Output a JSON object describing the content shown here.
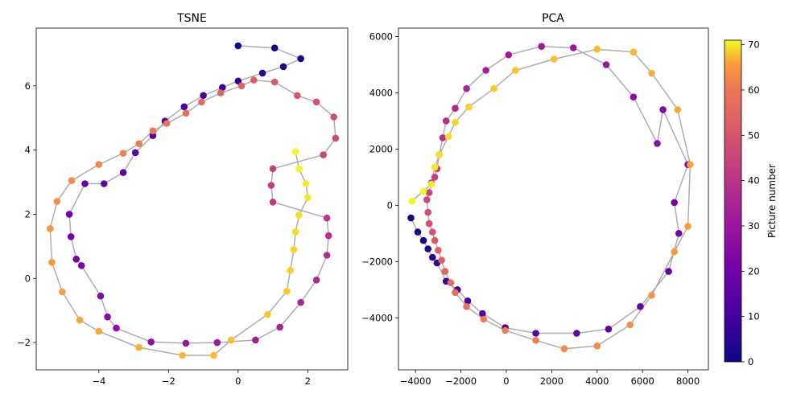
{
  "chart_data": [
    {
      "type": "scatter",
      "title": "TSNE",
      "connected_by_line": true,
      "line_color": "#999999",
      "colormap": "plasma",
      "xlim": [
        -5.8,
        3.15
      ],
      "ylim": [
        -2.85,
        7.8
      ],
      "x_ticks": [
        -4,
        -2,
        0,
        2
      ],
      "y_ticks": [
        -2,
        0,
        2,
        4,
        6
      ],
      "x": [
        0.0,
        1.05,
        1.8,
        1.3,
        0.7,
        0.0,
        -0.45,
        -1.0,
        -1.55,
        -2.1,
        -2.45,
        -2.95,
        -3.3,
        -3.85,
        -4.4,
        -4.85,
        -4.8,
        -4.65,
        -4.5,
        -3.95,
        -3.75,
        -3.5,
        -2.5,
        -1.5,
        -0.6,
        0.5,
        1.2,
        1.8,
        2.25,
        2.55,
        2.6,
        2.55,
        1.0,
        0.95,
        1.0,
        2.45,
        2.8,
        2.75,
        2.25,
        1.7,
        1.05,
        0.45,
        0.1,
        -0.5,
        -1.05,
        -1.5,
        -2.05,
        -2.45,
        -2.85,
        -3.3,
        -4.0,
        -4.78,
        -5.2,
        -5.4,
        -5.35,
        -5.05,
        -4.55,
        -4.0,
        -2.85,
        -1.6,
        -0.7,
        -0.2,
        0.85,
        1.4,
        1.5,
        1.6,
        1.65,
        1.75,
        2.0,
        1.95,
        1.75,
        1.65
      ],
      "y": [
        7.25,
        7.18,
        6.85,
        6.6,
        6.4,
        6.15,
        5.95,
        5.7,
        5.35,
        4.9,
        4.45,
        3.92,
        3.3,
        2.95,
        2.95,
        2.0,
        1.3,
        0.6,
        0.4,
        -0.55,
        -1.2,
        -1.55,
        -1.98,
        -2.02,
        -2.0,
        -1.92,
        -1.52,
        -0.75,
        -0.05,
        0.72,
        1.33,
        1.88,
        2.38,
        2.9,
        3.42,
        3.85,
        4.37,
        5.03,
        5.5,
        5.7,
        6.12,
        6.18,
        6.0,
        5.78,
        5.5,
        5.15,
        4.83,
        4.6,
        4.2,
        3.9,
        3.55,
        3.05,
        2.4,
        1.55,
        0.5,
        -0.42,
        -1.3,
        -1.65,
        -2.15,
        -2.4,
        -2.4,
        -1.92,
        -1.12,
        -0.4,
        0.25,
        0.9,
        1.45,
        1.97,
        2.52,
        2.95,
        3.42,
        3.95
      ],
      "point_order": "index = picture number (0-71)"
    },
    {
      "type": "scatter",
      "title": "PCA",
      "connected_by_line": true,
      "line_color": "#999999",
      "colormap": "plasma",
      "xlim": [
        -4750,
        8900
      ],
      "ylim": [
        -5850,
        6300
      ],
      "x_ticks": [
        -4000,
        -2000,
        0,
        2000,
        4000,
        6000,
        8000
      ],
      "y_ticks": [
        -4000,
        -2000,
        0,
        2000,
        4000,
        6000
      ],
      "x": [
        -4200,
        -3900,
        -3650,
        -3450,
        -3250,
        -3050,
        -2650,
        -2150,
        -1700,
        -1050,
        -50,
        1300,
        3100,
        4500,
        5900,
        7150,
        7600,
        7400,
        8000,
        6900,
        6650,
        5600,
        4400,
        2950,
        1550,
        100,
        -900,
        -1750,
        -2250,
        -2650,
        -2800,
        -2950,
        -3050,
        -3150,
        -3300,
        -3400,
        -3500,
        -3450,
        -3400,
        -3250,
        -3150,
        -3000,
        -2850,
        -2700,
        -2450,
        -2250,
        -1750,
        -1000,
        -50,
        1300,
        2550,
        4000,
        5450,
        6400,
        7400,
        8000,
        8100,
        7550,
        6400,
        5600,
        4000,
        2100,
        400,
        -550,
        -1650,
        -2250,
        -2550,
        -2950,
        -3150,
        -3300,
        -3650,
        -4150
      ],
      "y": [
        -450,
        -950,
        -1250,
        -1550,
        -1850,
        -2050,
        -2700,
        -3000,
        -3400,
        -3850,
        -4350,
        -4550,
        -4550,
        -4400,
        -3600,
        -2350,
        -1000,
        100,
        1450,
        3400,
        2200,
        3850,
        5000,
        5600,
        5650,
        5350,
        4800,
        4150,
        3450,
        3000,
        2400,
        1800,
        1300,
        1000,
        800,
        450,
        200,
        -250,
        -650,
        -950,
        -1250,
        -1600,
        -1950,
        -2350,
        -2750,
        -3100,
        -3600,
        -4050,
        -4450,
        -4800,
        -5100,
        -5000,
        -4250,
        -3200,
        -1650,
        -750,
        1450,
        3400,
        4700,
        5450,
        5550,
        5200,
        4800,
        4150,
        3500,
        2950,
        2450,
        1800,
        1350,
        750,
        500,
        150
      ],
      "point_order": "index = picture number (0-71)"
    }
  ],
  "colorbar": {
    "label": "Picture number",
    "ticks": [
      0,
      10,
      20,
      30,
      40,
      50,
      60,
      70
    ],
    "range": [
      0,
      71
    ]
  }
}
